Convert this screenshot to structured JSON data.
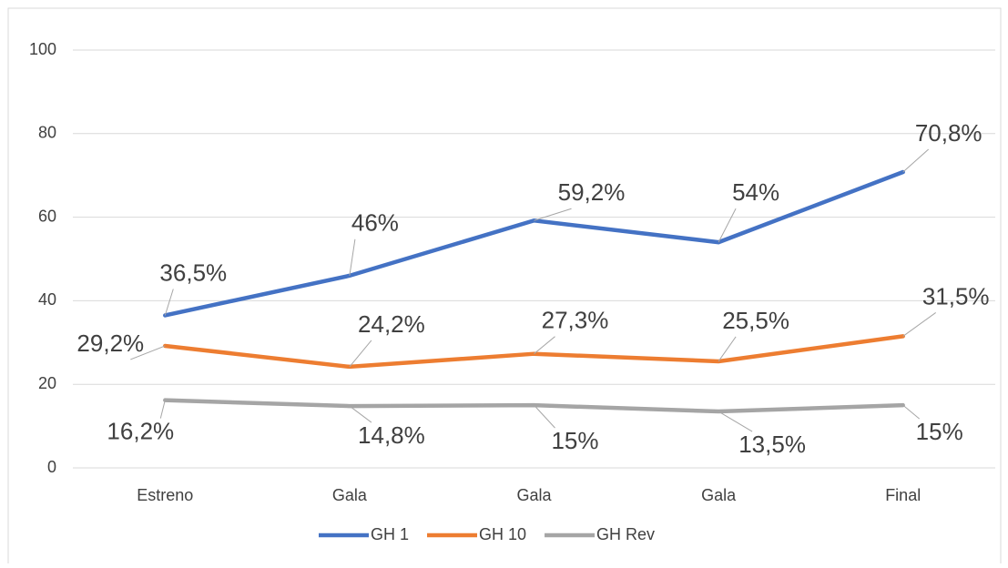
{
  "chart_data": {
    "type": "line",
    "categories": [
      "Estreno",
      "Gala",
      "Gala",
      "Gala",
      "Final"
    ],
    "series": [
      {
        "name": "GH 1",
        "color": "#4472c4",
        "values": [
          36.5,
          46,
          59.2,
          54,
          70.8
        ],
        "value_labels": [
          "36,5%",
          "46%",
          "59,2%",
          "54%",
          "70,8%"
        ]
      },
      {
        "name": "GH 10",
        "color": "#ed7d31",
        "values": [
          29.2,
          24.2,
          27.3,
          25.5,
          31.5
        ],
        "value_labels": [
          "29,2%",
          "24,2%",
          "27,3%",
          "25,5%",
          "31,5%"
        ]
      },
      {
        "name": "GH Rev",
        "color": "#a5a5a5",
        "values": [
          16.2,
          14.8,
          15,
          13.5,
          15
        ],
        "value_labels": [
          "16,2%",
          "14,8%",
          "15%",
          "13,5%",
          "15%"
        ]
      }
    ],
    "ylim": [
      0,
      100
    ],
    "yticks": [
      0,
      20,
      40,
      60,
      80,
      100
    ],
    "grid": true,
    "legend": "bottom"
  }
}
